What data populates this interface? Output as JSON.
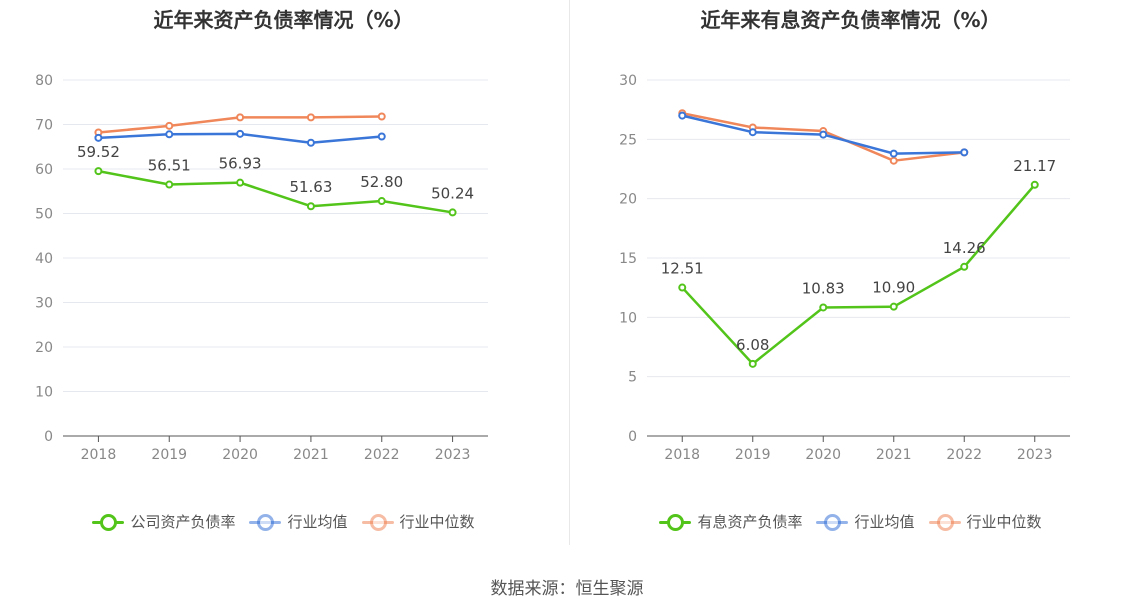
{
  "source_label": "数据来源：恒生聚源",
  "chart_data": [
    {
      "type": "line",
      "title": "近年来资产负债率情况（%）",
      "categories": [
        "2018",
        "2019",
        "2020",
        "2021",
        "2022",
        "2023"
      ],
      "ylim": [
        0,
        80
      ],
      "yticks": [
        "0",
        "10",
        "20",
        "30",
        "40",
        "50",
        "60",
        "70",
        "80"
      ],
      "grid": true,
      "legend_position": "bottom",
      "series": [
        {
          "name": "公司资产负债率",
          "color": "#52c41a",
          "values": [
            59.52,
            56.51,
            56.93,
            51.63,
            52.8,
            50.24
          ],
          "data_labels": [
            "59.52",
            "56.51",
            "56.93",
            "51.63",
            "52.80",
            "50.24"
          ]
        },
        {
          "name": "行业均值",
          "color": "#3a75d8",
          "values": [
            67.0,
            67.8,
            67.9,
            65.9,
            67.3,
            null
          ]
        },
        {
          "name": "行业中位数",
          "color": "#f0875a",
          "values": [
            68.2,
            69.7,
            71.6,
            71.6,
            71.8,
            null
          ]
        }
      ]
    },
    {
      "type": "line",
      "title": "近年来有息资产负债率情况（%）",
      "categories": [
        "2018",
        "2019",
        "2020",
        "2021",
        "2022",
        "2023"
      ],
      "ylim": [
        0,
        30
      ],
      "yticks": [
        "0",
        "5",
        "10",
        "15",
        "20",
        "25",
        "30"
      ],
      "grid": true,
      "legend_position": "bottom",
      "series": [
        {
          "name": "有息资产负债率",
          "color": "#52c41a",
          "values": [
            12.51,
            6.08,
            10.83,
            10.9,
            14.26,
            21.17
          ],
          "data_labels": [
            "12.51",
            "6.08",
            "10.83",
            "10.90",
            "14.26",
            "21.17"
          ]
        },
        {
          "name": "行业均值",
          "color": "#3a75d8",
          "values": [
            27.0,
            25.6,
            25.4,
            23.8,
            23.9,
            null
          ]
        },
        {
          "name": "行业中位数",
          "color": "#f0875a",
          "values": [
            27.2,
            26.0,
            25.7,
            23.2,
            23.9,
            null
          ]
        }
      ]
    }
  ]
}
